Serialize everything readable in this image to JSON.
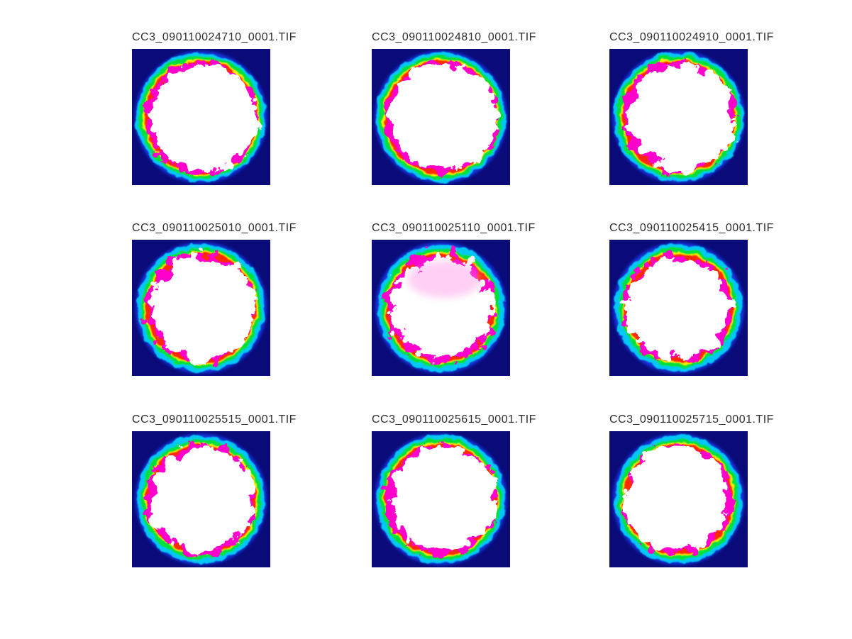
{
  "figure": {
    "background": "#ffffff",
    "title_color": "#2e2e2e"
  },
  "colormap": {
    "name": "jet-false-color",
    "background": "#0a0a78",
    "outer_blue": "#1238e0",
    "cyan": "#00c8f5",
    "green": "#00e03c",
    "yellow": "#fced00",
    "red": "#ff2a00",
    "magenta": "#ff00cc",
    "core_white": "#ffffff",
    "haze_pink": "#ff8ae4"
  },
  "grid": {
    "rows": 3,
    "cols": 3
  },
  "tiles": [
    {
      "title": "CC3_090110024710_0001.TIF",
      "seed": 3,
      "ring_shrink": 0,
      "white_r": 75,
      "white_dx": 4,
      "fringe": 28,
      "haze": false
    },
    {
      "title": "CC3_090110024810_0001.TIF",
      "seed": 17,
      "ring_shrink": 0,
      "white_r": 75,
      "white_dx": 4,
      "fringe": 28,
      "haze": false
    },
    {
      "title": "CC3_090110024910_0001.TIF",
      "seed": 29,
      "ring_shrink": 0,
      "white_r": 74,
      "white_dx": 5,
      "fringe": 34,
      "haze": false
    },
    {
      "title": "CC3_090110025010_0001.TIF",
      "seed": 41,
      "ring_shrink": 2,
      "white_r": 73,
      "white_dx": 3,
      "fringe": 34,
      "haze": false
    },
    {
      "title": "CC3_090110025110_0001.TIF",
      "seed": 55,
      "ring_shrink": 3,
      "white_r": 71,
      "white_dx": 2,
      "fringe": 40,
      "haze": true
    },
    {
      "title": "CC3_090110025415_0001.TIF",
      "seed": 67,
      "ring_shrink": 3,
      "white_r": 71,
      "white_dx": 0,
      "fringe": 40,
      "haze": false
    },
    {
      "title": "CC3_090110025515_0001.TIF",
      "seed": 79,
      "ring_shrink": 2,
      "white_r": 73,
      "white_dx": 2,
      "fringe": 34,
      "haze": false
    },
    {
      "title": "CC3_090110025615_0001.TIF",
      "seed": 91,
      "ring_shrink": 1,
      "white_r": 74,
      "white_dx": 4,
      "fringe": 30,
      "haze": false
    },
    {
      "title": "CC3_090110025715_0001.TIF",
      "seed": 103,
      "ring_shrink": 2,
      "white_r": 73,
      "white_dx": -4,
      "fringe": 32,
      "haze": false
    }
  ]
}
